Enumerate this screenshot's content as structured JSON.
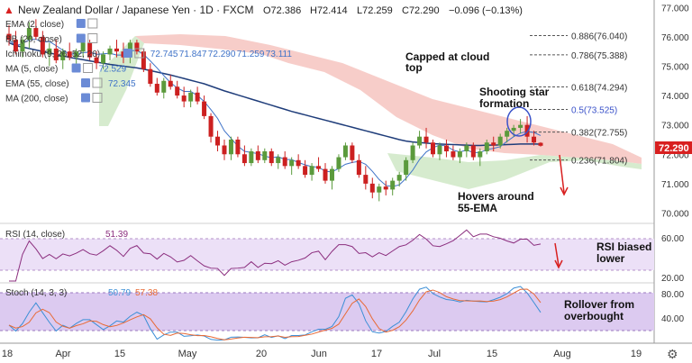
{
  "header": {
    "symbol": "New Zealand Dollar / Japanese Yen · 1D · FXCM",
    "ohlc": {
      "o": "O72.386",
      "h": "H72.414",
      "l": "L72.259",
      "c": "C72.290",
      "chg": "−0.096 (−0.13%)"
    }
  },
  "indicators": [
    {
      "label": "EMA (2, close)"
    },
    {
      "label": "BB (20, close)"
    },
    {
      "label": "Ichimoku (9, 26, 52, 26)",
      "values": [
        "72.745",
        "71.847",
        "72.290",
        "71.259",
        "73.111"
      ]
    },
    {
      "label": "MA (5, close)",
      "values": [
        "72.529"
      ]
    },
    {
      "label": "EMA (55, close)",
      "values": [
        "72.345"
      ]
    },
    {
      "label": "MA (200, close)"
    }
  ],
  "price_axis": {
    "ticks": [
      "77.000",
      "76.000",
      "75.000",
      "74.000",
      "73.000",
      "72.000",
      "71.000",
      "70.000"
    ],
    "last": "72.290"
  },
  "time_axis": {
    "ticks": [
      "18",
      "Apr",
      "15",
      "May",
      "20",
      "Jun",
      "17",
      "Jul",
      "15",
      "Aug",
      "19"
    ]
  },
  "fib_levels": [
    {
      "label": "0.886(76.040)"
    },
    {
      "label": "0.786(75.388)"
    },
    {
      "label": "0.618(74.294)"
    },
    {
      "label": "0.5(73.525)"
    },
    {
      "label": "0.382(72.755)"
    },
    {
      "label": "0.236(71.804)"
    }
  ],
  "annotations": {
    "cloud": "Capped at cloud top",
    "star": "Shooting star formation",
    "ema": "Hovers around 55-EMA",
    "rsi": "RSI biased lower",
    "stoch": "Rollover from overbought"
  },
  "rsi": {
    "label": "RSI (14, close)",
    "value": "51.39",
    "ticks": [
      "60.00",
      "20.00"
    ]
  },
  "stoch": {
    "label": "Stoch (14, 3, 3)",
    "k": "50.79",
    "d": "57.38",
    "ticks": [
      "80.00",
      "40.00"
    ]
  },
  "colors": {
    "bull": "#5b9a3c",
    "bear": "#cc2020",
    "ema55": "#1f3d7a",
    "ma5": "#3f73c8",
    "cloud_red": "#f6c4c0",
    "cloud_green": "#cfe8c6",
    "rsi": "#8b2e7e",
    "stoch_k": "#3c8fd6",
    "stoch_d": "#e86a35",
    "band": "#e9dbf5"
  },
  "chart_data": {
    "type": "candlestick",
    "price": {
      "ylim": [
        69.8,
        77.1
      ],
      "candles": [
        [
          76.1,
          76.4,
          75.7,
          75.9
        ],
        [
          75.9,
          76.2,
          75.4,
          75.5
        ],
        [
          75.5,
          76.0,
          75.3,
          75.9
        ],
        [
          75.9,
          76.5,
          75.6,
          76.3
        ],
        [
          76.3,
          76.6,
          75.9,
          76.0
        ],
        [
          76.0,
          76.2,
          75.3,
          75.4
        ],
        [
          75.4,
          75.8,
          75.0,
          75.6
        ],
        [
          75.6,
          75.9,
          75.1,
          75.2
        ],
        [
          75.2,
          75.6,
          74.9,
          75.5
        ],
        [
          75.5,
          75.8,
          75.2,
          75.3
        ],
        [
          75.3,
          75.6,
          75.0,
          75.5
        ],
        [
          75.5,
          76.0,
          75.3,
          75.8
        ],
        [
          75.8,
          75.9,
          75.2,
          75.3
        ],
        [
          75.3,
          75.5,
          74.9,
          75.1
        ],
        [
          75.1,
          75.5,
          74.9,
          75.4
        ],
        [
          75.4,
          75.7,
          75.2,
          75.6
        ],
        [
          75.6,
          75.9,
          75.3,
          75.5
        ],
        [
          75.5,
          75.8,
          75.1,
          75.3
        ],
        [
          75.3,
          75.9,
          75.1,
          75.8
        ],
        [
          75.8,
          75.9,
          75.4,
          75.5
        ],
        [
          75.5,
          75.6,
          74.8,
          74.9
        ],
        [
          74.9,
          75.1,
          74.3,
          74.4
        ],
        [
          74.4,
          74.6,
          74.0,
          74.1
        ],
        [
          74.1,
          74.6,
          73.9,
          74.5
        ],
        [
          74.5,
          74.7,
          74.2,
          74.3
        ],
        [
          74.3,
          74.5,
          73.9,
          74.0
        ],
        [
          74.0,
          74.3,
          73.6,
          73.8
        ],
        [
          73.8,
          74.2,
          73.6,
          74.1
        ],
        [
          74.1,
          74.3,
          73.7,
          73.8
        ],
        [
          73.8,
          74.0,
          73.2,
          73.3
        ],
        [
          73.3,
          73.4,
          72.4,
          72.6
        ],
        [
          72.6,
          72.8,
          72.1,
          72.3
        ],
        [
          72.3,
          72.5,
          71.8,
          72.0
        ],
        [
          72.0,
          72.6,
          71.8,
          72.5
        ],
        [
          72.5,
          72.6,
          71.9,
          72.0
        ],
        [
          72.0,
          72.3,
          71.6,
          71.7
        ],
        [
          71.7,
          72.2,
          71.6,
          72.1
        ],
        [
          72.1,
          72.3,
          71.7,
          71.8
        ],
        [
          71.8,
          72.2,
          71.7,
          72.1
        ],
        [
          72.1,
          72.2,
          71.6,
          71.7
        ],
        [
          71.7,
          72.0,
          71.5,
          71.9
        ],
        [
          71.9,
          72.1,
          71.5,
          71.6
        ],
        [
          71.6,
          71.9,
          71.3,
          71.8
        ],
        [
          71.8,
          72.0,
          71.5,
          71.6
        ],
        [
          71.6,
          71.8,
          71.2,
          71.3
        ],
        [
          71.3,
          71.7,
          71.1,
          71.6
        ],
        [
          71.6,
          71.9,
          71.4,
          71.5
        ],
        [
          71.5,
          71.7,
          71.0,
          71.1
        ],
        [
          71.1,
          71.6,
          70.8,
          71.5
        ],
        [
          71.5,
          72.0,
          71.4,
          71.9
        ],
        [
          71.9,
          72.4,
          71.8,
          72.3
        ],
        [
          72.3,
          72.4,
          71.7,
          71.8
        ],
        [
          71.8,
          72.0,
          71.2,
          71.3
        ],
        [
          71.3,
          71.6,
          70.8,
          71.0
        ],
        [
          71.0,
          71.2,
          70.5,
          70.7
        ],
        [
          70.7,
          71.0,
          70.4,
          70.9
        ],
        [
          70.9,
          71.1,
          70.6,
          70.8
        ],
        [
          70.8,
          71.2,
          70.6,
          71.1
        ],
        [
          71.1,
          71.4,
          70.9,
          71.3
        ],
        [
          71.3,
          71.9,
          71.1,
          71.8
        ],
        [
          71.8,
          72.4,
          71.7,
          72.3
        ],
        [
          72.3,
          72.8,
          72.2,
          72.6
        ],
        [
          72.6,
          72.9,
          72.2,
          72.4
        ],
        [
          72.4,
          72.5,
          71.9,
          72.0
        ],
        [
          72.0,
          72.4,
          71.8,
          72.3
        ],
        [
          72.3,
          72.5,
          71.9,
          72.1
        ],
        [
          72.1,
          72.3,
          71.8,
          71.9
        ],
        [
          71.9,
          72.2,
          71.7,
          72.1
        ],
        [
          72.1,
          72.4,
          71.9,
          72.3
        ],
        [
          72.3,
          72.4,
          71.8,
          71.9
        ],
        [
          71.9,
          72.2,
          71.6,
          72.1
        ],
        [
          72.1,
          72.5,
          72.0,
          72.4
        ],
        [
          72.4,
          72.6,
          72.1,
          72.3
        ],
        [
          72.3,
          72.7,
          72.2,
          72.6
        ],
        [
          72.6,
          72.9,
          72.4,
          72.8
        ],
        [
          72.8,
          73.0,
          72.6,
          72.9
        ],
        [
          72.9,
          73.2,
          72.7,
          73.0
        ],
        [
          73.0,
          73.3,
          72.4,
          72.6
        ],
        [
          72.6,
          72.8,
          72.3,
          72.4
        ],
        [
          72.39,
          72.41,
          72.26,
          72.29
        ]
      ],
      "ema55": [
        75.8,
        75.7,
        75.65,
        75.6,
        75.55,
        75.5,
        75.45,
        75.4,
        75.35,
        75.3,
        75.26,
        75.22,
        75.18,
        75.14,
        75.1,
        75.06,
        75.03,
        75.0,
        74.97,
        74.94,
        74.9,
        74.85,
        74.8,
        74.75,
        74.7,
        74.64,
        74.58,
        74.52,
        74.46,
        74.4,
        74.32,
        74.24,
        74.16,
        74.09,
        74.02,
        73.95,
        73.88,
        73.81,
        73.74,
        73.67,
        73.6,
        73.53,
        73.46,
        73.4,
        73.34,
        73.28,
        73.22,
        73.16,
        73.1,
        73.04,
        72.98,
        72.92,
        72.86,
        72.8,
        72.74,
        72.68,
        72.62,
        72.56,
        72.5,
        72.45,
        72.42,
        72.4,
        72.38,
        72.36,
        72.35,
        72.34,
        72.33,
        72.32,
        72.31,
        72.3,
        72.3,
        72.31,
        72.31,
        72.32,
        72.33,
        72.34,
        72.35,
        72.35,
        72.35,
        72.345
      ],
      "fib": [
        76.04,
        75.388,
        74.294,
        73.525,
        72.755,
        71.804
      ]
    },
    "rsi": {
      "ylim": [
        10,
        75
      ]
    },
    "stoch": {
      "ylim": [
        0,
        100
      ]
    }
  }
}
